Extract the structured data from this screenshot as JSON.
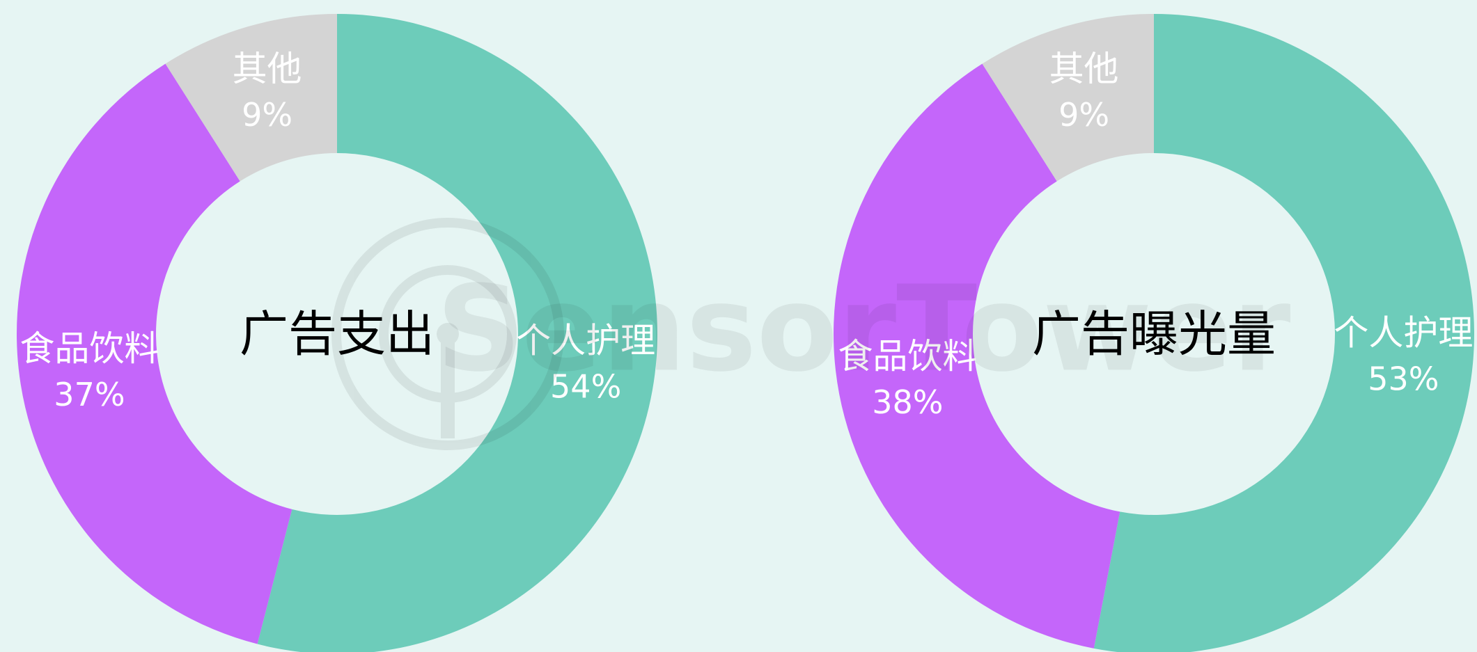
{
  "watermark": "SensorTower",
  "chart_data": [
    {
      "type": "donut",
      "title": "广告支出",
      "categories": [
        "个人护理",
        "食品饮料",
        "其他"
      ],
      "values": [
        54,
        37,
        9
      ],
      "value_labels": [
        "54%",
        "37%",
        "9%"
      ],
      "colors": [
        "#6dccba",
        "#c466fa",
        "#d4d4d4"
      ]
    },
    {
      "type": "donut",
      "title": "广告曝光量",
      "categories": [
        "个人护理",
        "食品饮料",
        "其他"
      ],
      "values": [
        53,
        38,
        9
      ],
      "value_labels": [
        "53%",
        "38%",
        "9%"
      ],
      "colors": [
        "#6dccba",
        "#c466fa",
        "#d4d4d4"
      ]
    }
  ]
}
